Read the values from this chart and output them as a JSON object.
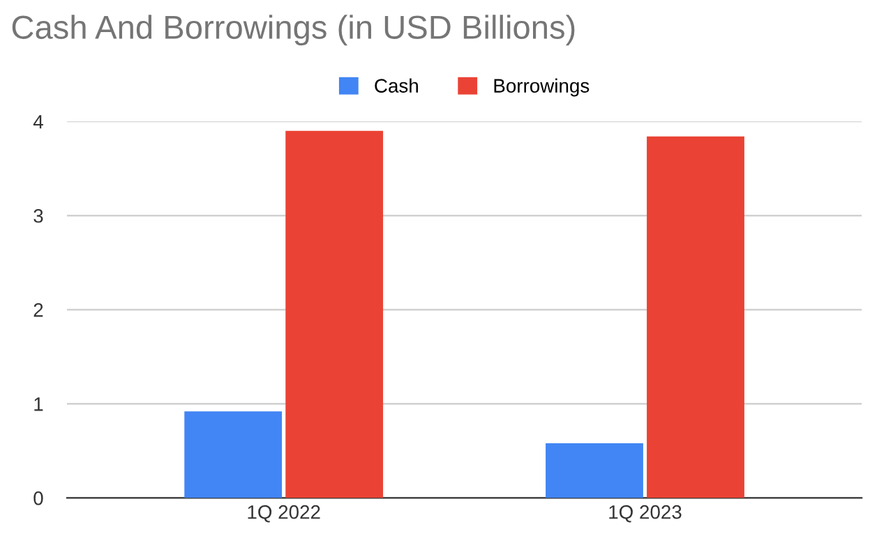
{
  "chart_data": {
    "type": "bar",
    "title": "Cash And Borrowings (in USD Billions)",
    "categories": [
      "1Q 2022",
      "1Q 2023"
    ],
    "series": [
      {
        "name": "Cash",
        "color": "#4285f4",
        "values": [
          0.92,
          0.58
        ]
      },
      {
        "name": "Borrowings",
        "color": "#ea4335",
        "values": [
          3.9,
          3.84
        ]
      }
    ],
    "ylim": [
      0,
      4
    ],
    "yticks": [
      0,
      1,
      2,
      3,
      4
    ],
    "grid": "y",
    "legend": "top"
  }
}
